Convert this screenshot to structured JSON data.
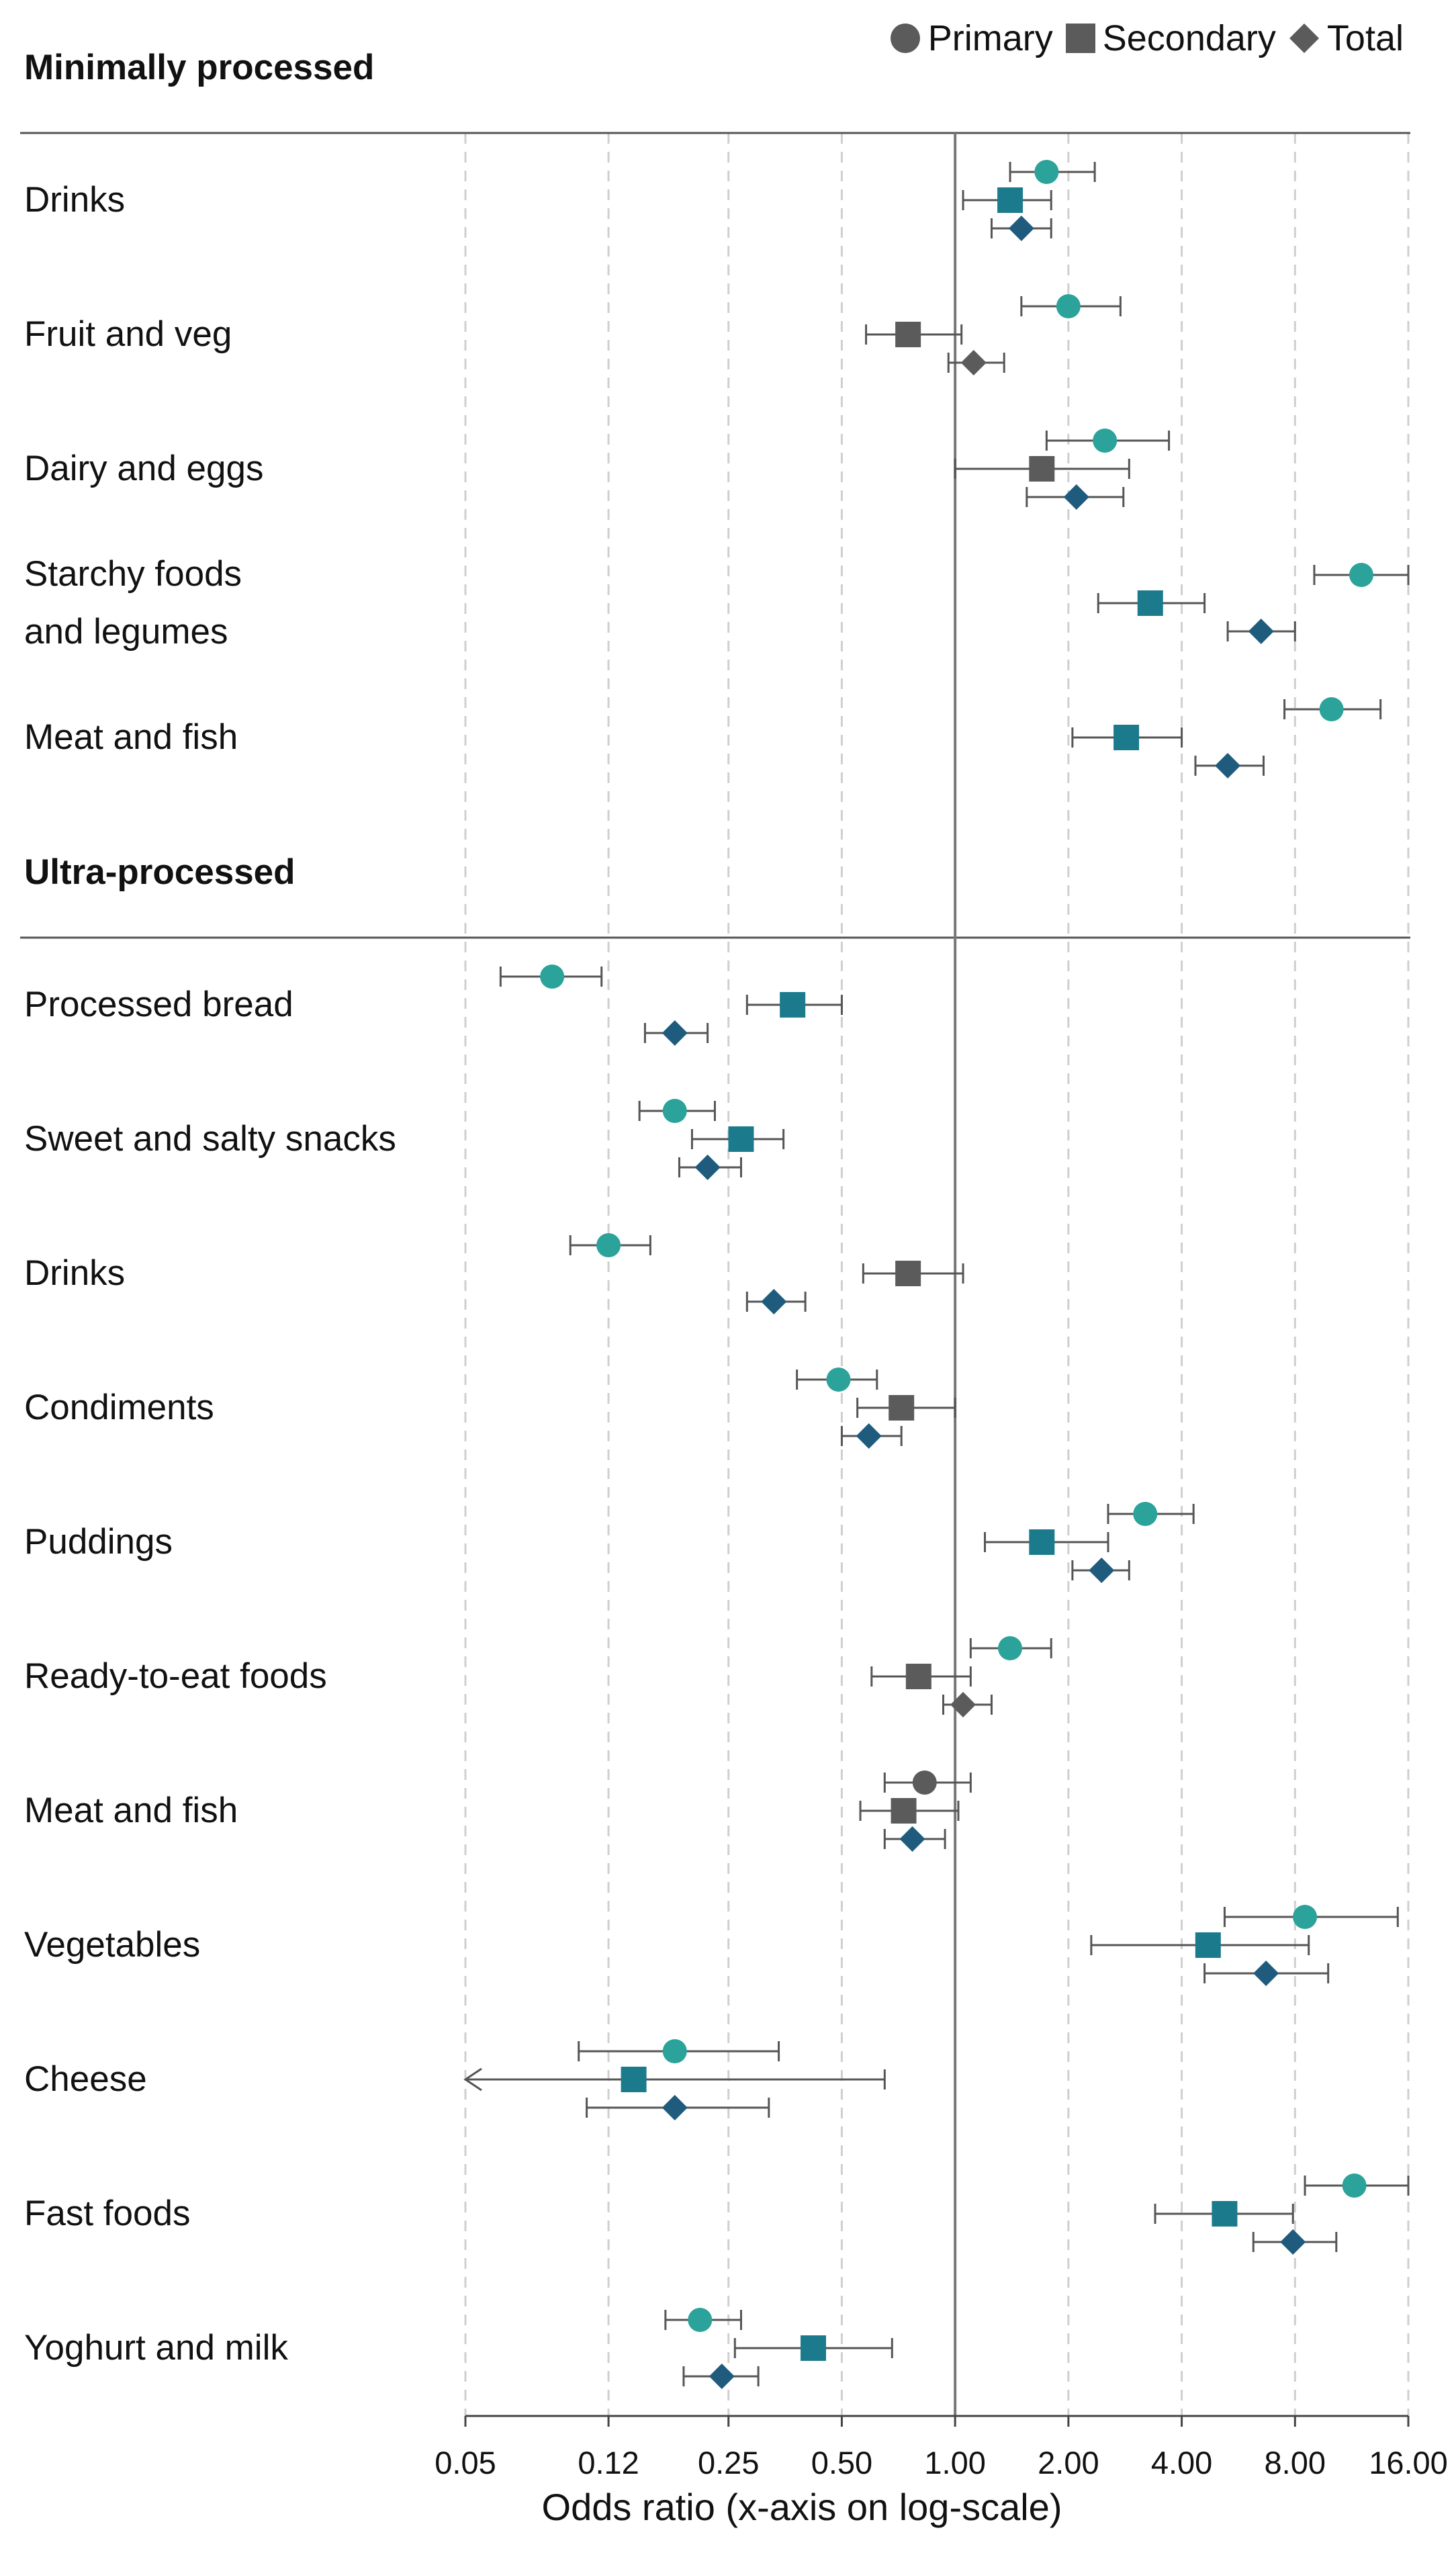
{
  "colors": {
    "primary": "#2ba39a",
    "secondary": "#1b7a8c",
    "total": "#1f5b7d",
    "nonsignificant": "#5b5b5b",
    "legend": "#5b5b5b",
    "ci": "#555555",
    "grid": "#cfcfcf",
    "axis": "#777777"
  },
  "legend": [
    {
      "name": "Primary",
      "shape": "circle"
    },
    {
      "name": "Secondary",
      "shape": "square"
    },
    {
      "name": "Total",
      "shape": "diamond"
    }
  ],
  "chart_data": {
    "type": "forest",
    "xlabel": "Odds ratio (x-axis on log-scale)",
    "xscale": "log",
    "xlim": [
      0.05,
      16.0
    ],
    "xticks": [
      0.05,
      0.12,
      0.25,
      0.5,
      1.0,
      2.0,
      4.0,
      8.0,
      16.0
    ],
    "xtick_labels": [
      "0.05",
      "0.12",
      "0.25",
      "0.50",
      "1.00",
      "2.00",
      "4.00",
      "8.00",
      "16.00"
    ],
    "reference_line": 1.0,
    "sections": [
      {
        "title": "Minimally processed",
        "rows": [
          {
            "label": [
              "Drinks"
            ],
            "estimates": [
              {
                "series": "Primary",
                "or": 1.75,
                "lo": 1.4,
                "hi": 2.35,
                "significant": true
              },
              {
                "series": "Secondary",
                "or": 1.4,
                "lo": 1.05,
                "hi": 1.8,
                "significant": true
              },
              {
                "series": "Total",
                "or": 1.5,
                "lo": 1.25,
                "hi": 1.8,
                "significant": true
              }
            ]
          },
          {
            "label": [
              "Fruit and veg"
            ],
            "estimates": [
              {
                "series": "Primary",
                "or": 2.0,
                "lo": 1.5,
                "hi": 2.75,
                "significant": true
              },
              {
                "series": "Secondary",
                "or": 0.75,
                "lo": 0.58,
                "hi": 1.04,
                "significant": false
              },
              {
                "series": "Total",
                "or": 1.12,
                "lo": 0.96,
                "hi": 1.35,
                "significant": false
              }
            ]
          },
          {
            "label": [
              "Dairy and eggs"
            ],
            "estimates": [
              {
                "series": "Primary",
                "or": 2.5,
                "lo": 1.75,
                "hi": 3.7,
                "significant": true
              },
              {
                "series": "Secondary",
                "or": 1.7,
                "lo": 1.0,
                "hi": 2.9,
                "significant": false
              },
              {
                "series": "Total",
                "or": 2.1,
                "lo": 1.55,
                "hi": 2.8,
                "significant": true
              }
            ]
          },
          {
            "label": [
              "Starchy foods",
              "and legumes"
            ],
            "estimates": [
              {
                "series": "Primary",
                "or": 12.0,
                "lo": 9.0,
                "hi": 16.0,
                "significant": true
              },
              {
                "series": "Secondary",
                "or": 3.3,
                "lo": 2.4,
                "hi": 4.6,
                "significant": true
              },
              {
                "series": "Total",
                "or": 6.5,
                "lo": 5.3,
                "hi": 8.0,
                "significant": true
              }
            ]
          },
          {
            "label": [
              "Meat and fish"
            ],
            "estimates": [
              {
                "series": "Primary",
                "or": 10.0,
                "lo": 7.5,
                "hi": 13.5,
                "significant": true
              },
              {
                "series": "Secondary",
                "or": 2.85,
                "lo": 2.05,
                "hi": 4.0,
                "significant": true
              },
              {
                "series": "Total",
                "or": 5.3,
                "lo": 4.35,
                "hi": 6.6,
                "significant": true
              }
            ]
          }
        ]
      },
      {
        "title": "Ultra-processed",
        "rows": [
          {
            "label": [
              "Processed bread"
            ],
            "estimates": [
              {
                "series": "Primary",
                "or": 0.085,
                "lo": 0.062,
                "hi": 0.115,
                "significant": true
              },
              {
                "series": "Secondary",
                "or": 0.37,
                "lo": 0.28,
                "hi": 0.5,
                "significant": true
              },
              {
                "series": "Total",
                "or": 0.18,
                "lo": 0.15,
                "hi": 0.22,
                "significant": true
              }
            ]
          },
          {
            "label": [
              "Sweet and salty snacks"
            ],
            "estimates": [
              {
                "series": "Primary",
                "or": 0.18,
                "lo": 0.145,
                "hi": 0.23,
                "significant": true
              },
              {
                "series": "Secondary",
                "or": 0.27,
                "lo": 0.2,
                "hi": 0.35,
                "significant": true
              },
              {
                "series": "Total",
                "or": 0.22,
                "lo": 0.185,
                "hi": 0.27,
                "significant": true
              }
            ]
          },
          {
            "label": [
              "Drinks"
            ],
            "estimates": [
              {
                "series": "Primary",
                "or": 0.12,
                "lo": 0.095,
                "hi": 0.155,
                "significant": true
              },
              {
                "series": "Secondary",
                "or": 0.75,
                "lo": 0.57,
                "hi": 1.05,
                "significant": false
              },
              {
                "series": "Total",
                "or": 0.33,
                "lo": 0.28,
                "hi": 0.4,
                "significant": true
              }
            ]
          },
          {
            "label": [
              "Condiments"
            ],
            "estimates": [
              {
                "series": "Primary",
                "or": 0.49,
                "lo": 0.38,
                "hi": 0.62,
                "significant": true
              },
              {
                "series": "Secondary",
                "or": 0.72,
                "lo": 0.55,
                "hi": 1.0,
                "significant": false
              },
              {
                "series": "Total",
                "or": 0.59,
                "lo": 0.5,
                "hi": 0.72,
                "significant": true
              }
            ]
          },
          {
            "label": [
              "Puddings"
            ],
            "estimates": [
              {
                "series": "Primary",
                "or": 3.2,
                "lo": 2.55,
                "hi": 4.3,
                "significant": true
              },
              {
                "series": "Secondary",
                "or": 1.7,
                "lo": 1.2,
                "hi": 2.55,
                "significant": true
              },
              {
                "series": "Total",
                "or": 2.45,
                "lo": 2.05,
                "hi": 2.9,
                "significant": true
              }
            ]
          },
          {
            "label": [
              "Ready-to-eat foods"
            ],
            "estimates": [
              {
                "series": "Primary",
                "or": 1.4,
                "lo": 1.1,
                "hi": 1.8,
                "significant": true
              },
              {
                "series": "Secondary",
                "or": 0.8,
                "lo": 0.6,
                "hi": 1.1,
                "significant": false
              },
              {
                "series": "Total",
                "or": 1.05,
                "lo": 0.93,
                "hi": 1.25,
                "significant": false
              }
            ]
          },
          {
            "label": [
              "Meat and fish"
            ],
            "estimates": [
              {
                "series": "Primary",
                "or": 0.83,
                "lo": 0.65,
                "hi": 1.1,
                "significant": false
              },
              {
                "series": "Secondary",
                "or": 0.73,
                "lo": 0.56,
                "hi": 1.02,
                "significant": false
              },
              {
                "series": "Total",
                "or": 0.77,
                "lo": 0.65,
                "hi": 0.94,
                "significant": true
              }
            ]
          },
          {
            "label": [
              "Vegetables"
            ],
            "estimates": [
              {
                "series": "Primary",
                "or": 8.5,
                "lo": 5.2,
                "hi": 15.0,
                "significant": true
              },
              {
                "series": "Secondary",
                "or": 4.7,
                "lo": 2.3,
                "hi": 8.7,
                "significant": true
              },
              {
                "series": "Total",
                "or": 6.7,
                "lo": 4.6,
                "hi": 9.8,
                "significant": true
              }
            ]
          },
          {
            "label": [
              "Cheese"
            ],
            "estimates": [
              {
                "series": "Primary",
                "or": 0.18,
                "lo": 0.1,
                "hi": 0.34,
                "significant": true
              },
              {
                "series": "Secondary",
                "or": 0.14,
                "lo": 0.05,
                "hi": 0.65,
                "significant": true,
                "lower_truncated": true
              },
              {
                "series": "Total",
                "or": 0.18,
                "lo": 0.105,
                "hi": 0.32,
                "significant": true
              }
            ]
          },
          {
            "label": [
              "Fast foods"
            ],
            "estimates": [
              {
                "series": "Primary",
                "or": 11.5,
                "lo": 8.5,
                "hi": 16.0,
                "significant": true
              },
              {
                "series": "Secondary",
                "or": 5.2,
                "lo": 3.4,
                "hi": 7.9,
                "significant": true
              },
              {
                "series": "Total",
                "or": 7.9,
                "lo": 6.2,
                "hi": 10.3,
                "significant": true
              }
            ]
          },
          {
            "label": [
              "Yoghurt and milk"
            ],
            "estimates": [
              {
                "series": "Primary",
                "or": 0.21,
                "lo": 0.17,
                "hi": 0.27,
                "significant": true
              },
              {
                "series": "Secondary",
                "or": 0.42,
                "lo": 0.26,
                "hi": 0.68,
                "significant": true
              },
              {
                "series": "Total",
                "or": 0.24,
                "lo": 0.19,
                "hi": 0.3,
                "significant": true
              }
            ]
          }
        ]
      }
    ]
  }
}
